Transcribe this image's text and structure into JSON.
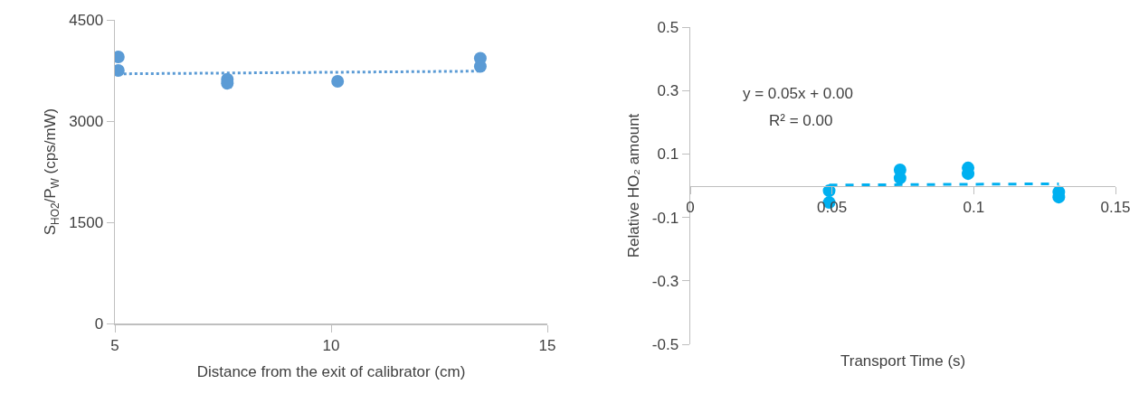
{
  "chart_data": [
    {
      "type": "scatter",
      "xlabel": "Distance from the exit of calibrator (cm)",
      "ylabel": "S$_{HO2}$/P$_{W}$ (cps/mW)",
      "xlim": [
        5,
        15
      ],
      "xticks": [
        5,
        10,
        15
      ],
      "ylim": [
        0,
        4500
      ],
      "yticks": [
        0,
        1500,
        3000,
        4500
      ],
      "series": [
        {
          "marker": "circle",
          "color": "#5b9bd5",
          "x": [
            5.08,
            5.08,
            7.6,
            7.6,
            10.15,
            13.45,
            13.45
          ],
          "values": [
            3950,
            3750,
            3620,
            3560,
            3590,
            3930,
            3810
          ]
        },
        {
          "type": "line",
          "marker": "none",
          "line_style": "dotted",
          "color": "#5b9bd5",
          "x": [
            5.08,
            13.45
          ],
          "values": [
            3700,
            3740
          ]
        }
      ]
    },
    {
      "type": "scatter",
      "xlabel": "Transport Time (s)",
      "ylabel": "Relative HO₂ amount",
      "xlim": [
        0,
        0.15
      ],
      "xticks": [
        0,
        0.05,
        0.1,
        0.15
      ],
      "ylim": [
        -0.5,
        0.5
      ],
      "yticks": [
        -0.5,
        -0.3,
        -0.1,
        0.1,
        0.3,
        0.5
      ],
      "annotations": [
        "y = 0.05x + 0.00",
        "R² = 0.00"
      ],
      "series": [
        {
          "marker": "circle",
          "color": "#00b0f0",
          "x": [
            0.049,
            0.049,
            0.074,
            0.074,
            0.098,
            0.098,
            0.13,
            0.13
          ],
          "values": [
            -0.016,
            -0.053,
            0.05,
            0.024,
            0.056,
            0.038,
            -0.02,
            -0.036
          ]
        },
        {
          "type": "line",
          "marker": "none",
          "line_style": "dashed",
          "color": "#00b0f0",
          "x": [
            0.049,
            0.13
          ],
          "values": [
            0.002,
            0.006
          ]
        }
      ]
    }
  ]
}
